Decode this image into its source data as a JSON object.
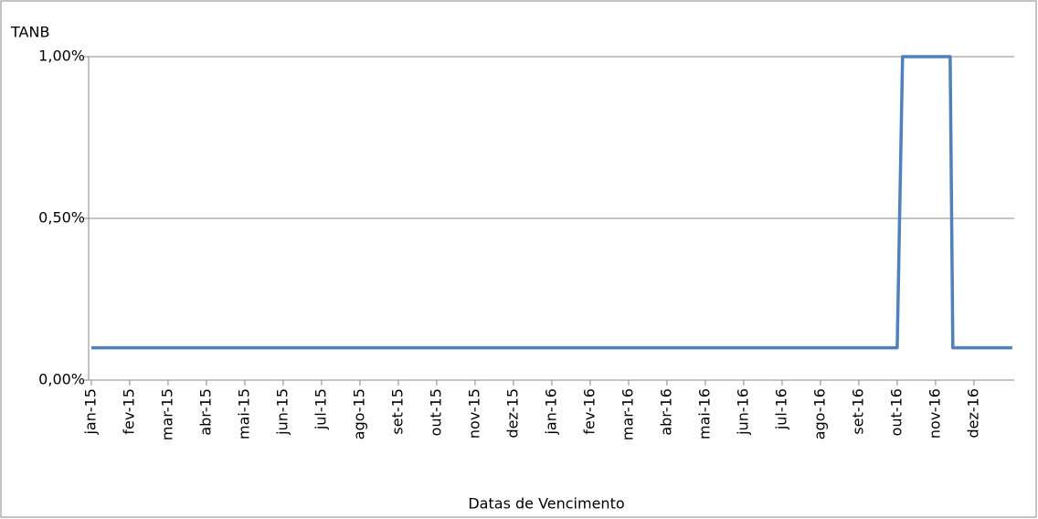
{
  "chart_data": {
    "type": "line",
    "y_label": "TANB",
    "x_label": "Datas de Vencimento",
    "x": [
      0,
      21,
      21.14,
      22.38,
      22.45,
      24
    ],
    "series": [
      {
        "color": "#4f81bd",
        "values": [
          0.1,
          0.1,
          1.0,
          1.0,
          0.1,
          0.1
        ]
      }
    ],
    "xlim": [
      -0.07,
      24.05
    ],
    "xticks": [
      {
        "value": 0,
        "label": "jan-15"
      },
      {
        "value": 1,
        "label": "fev-15"
      },
      {
        "value": 2,
        "label": "mar-15"
      },
      {
        "value": 3,
        "label": "abr-15"
      },
      {
        "value": 4,
        "label": "mai-15"
      },
      {
        "value": 5,
        "label": "jun-15"
      },
      {
        "value": 6,
        "label": "jul-15"
      },
      {
        "value": 7,
        "label": "ago-15"
      },
      {
        "value": 8,
        "label": "set-15"
      },
      {
        "value": 9,
        "label": "out-15"
      },
      {
        "value": 10,
        "label": "nov-15"
      },
      {
        "value": 11,
        "label": "dez-15"
      },
      {
        "value": 12,
        "label": "jan-16"
      },
      {
        "value": 13,
        "label": "fev-16"
      },
      {
        "value": 14,
        "label": "mar-16"
      },
      {
        "value": 15,
        "label": "abr-16"
      },
      {
        "value": 16,
        "label": "mai-16"
      },
      {
        "value": 17,
        "label": "jun-16"
      },
      {
        "value": 18,
        "label": "jul-16"
      },
      {
        "value": 19,
        "label": "ago-16"
      },
      {
        "value": 20,
        "label": "set-16"
      },
      {
        "value": 21,
        "label": "out-16"
      },
      {
        "value": 22,
        "label": "nov-16"
      },
      {
        "value": 23,
        "label": "dez-16"
      }
    ],
    "ylim": [
      0,
      1.0
    ],
    "yticks": [
      {
        "value": 0,
        "label": "0,00%"
      },
      {
        "value": 0.5,
        "label": "0,50%"
      },
      {
        "value": 1.0,
        "label": "1,00%"
      }
    ],
    "grid": true
  }
}
